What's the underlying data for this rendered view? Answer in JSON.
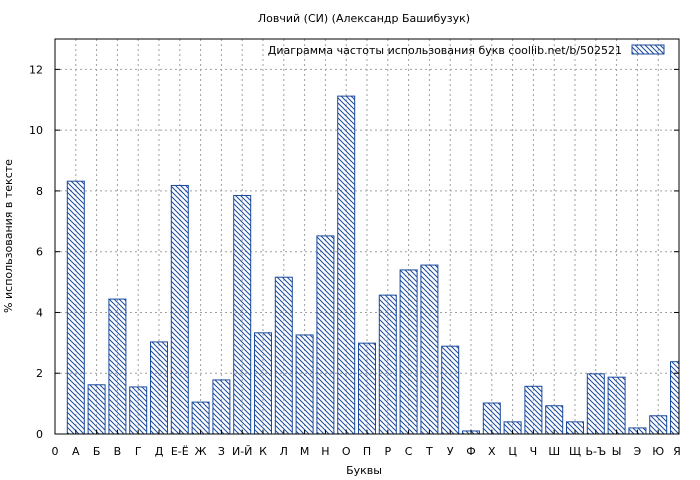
{
  "chart_data": {
    "type": "bar",
    "title": "Ловчий (СИ) (Александр Башибузук)",
    "xlabel": "Буквы",
    "ylabel": "% использования в тексте",
    "legend": {
      "label": "Диаграмма частоты использования букв  coollib.net/b/502521",
      "position": "top-right"
    },
    "grid": true,
    "ylim": [
      0,
      13
    ],
    "yticks": [
      0,
      2,
      4,
      6,
      8,
      10,
      12
    ],
    "categories": [
      "0",
      "А",
      "Б",
      "В",
      "Г",
      "Д",
      "Е-Ё",
      "Ж",
      "З",
      "И-Й",
      "К",
      "Л",
      "М",
      "Н",
      "О",
      "П",
      "Р",
      "С",
      "Т",
      "У",
      "Ф",
      "Х",
      "Ц",
      "Ч",
      "Ш",
      "Щ",
      "Ь-Ъ",
      "Ы",
      "Э",
      "Ю",
      "Я"
    ],
    "values": [
      null,
      8.32,
      1.62,
      4.44,
      1.55,
      3.03,
      8.18,
      1.05,
      1.78,
      7.85,
      3.33,
      5.16,
      3.26,
      6.52,
      11.12,
      2.99,
      4.57,
      5.4,
      5.56,
      2.89,
      0.1,
      1.02,
      0.4,
      1.57,
      0.93,
      0.4,
      1.98,
      1.87,
      0.2,
      0.6,
      2.38
    ],
    "colors": {
      "bar_stroke": "#1a4a9c",
      "hatch": "#1a4a9c",
      "grid": "#a0a0a0",
      "axis": "#000000"
    }
  }
}
